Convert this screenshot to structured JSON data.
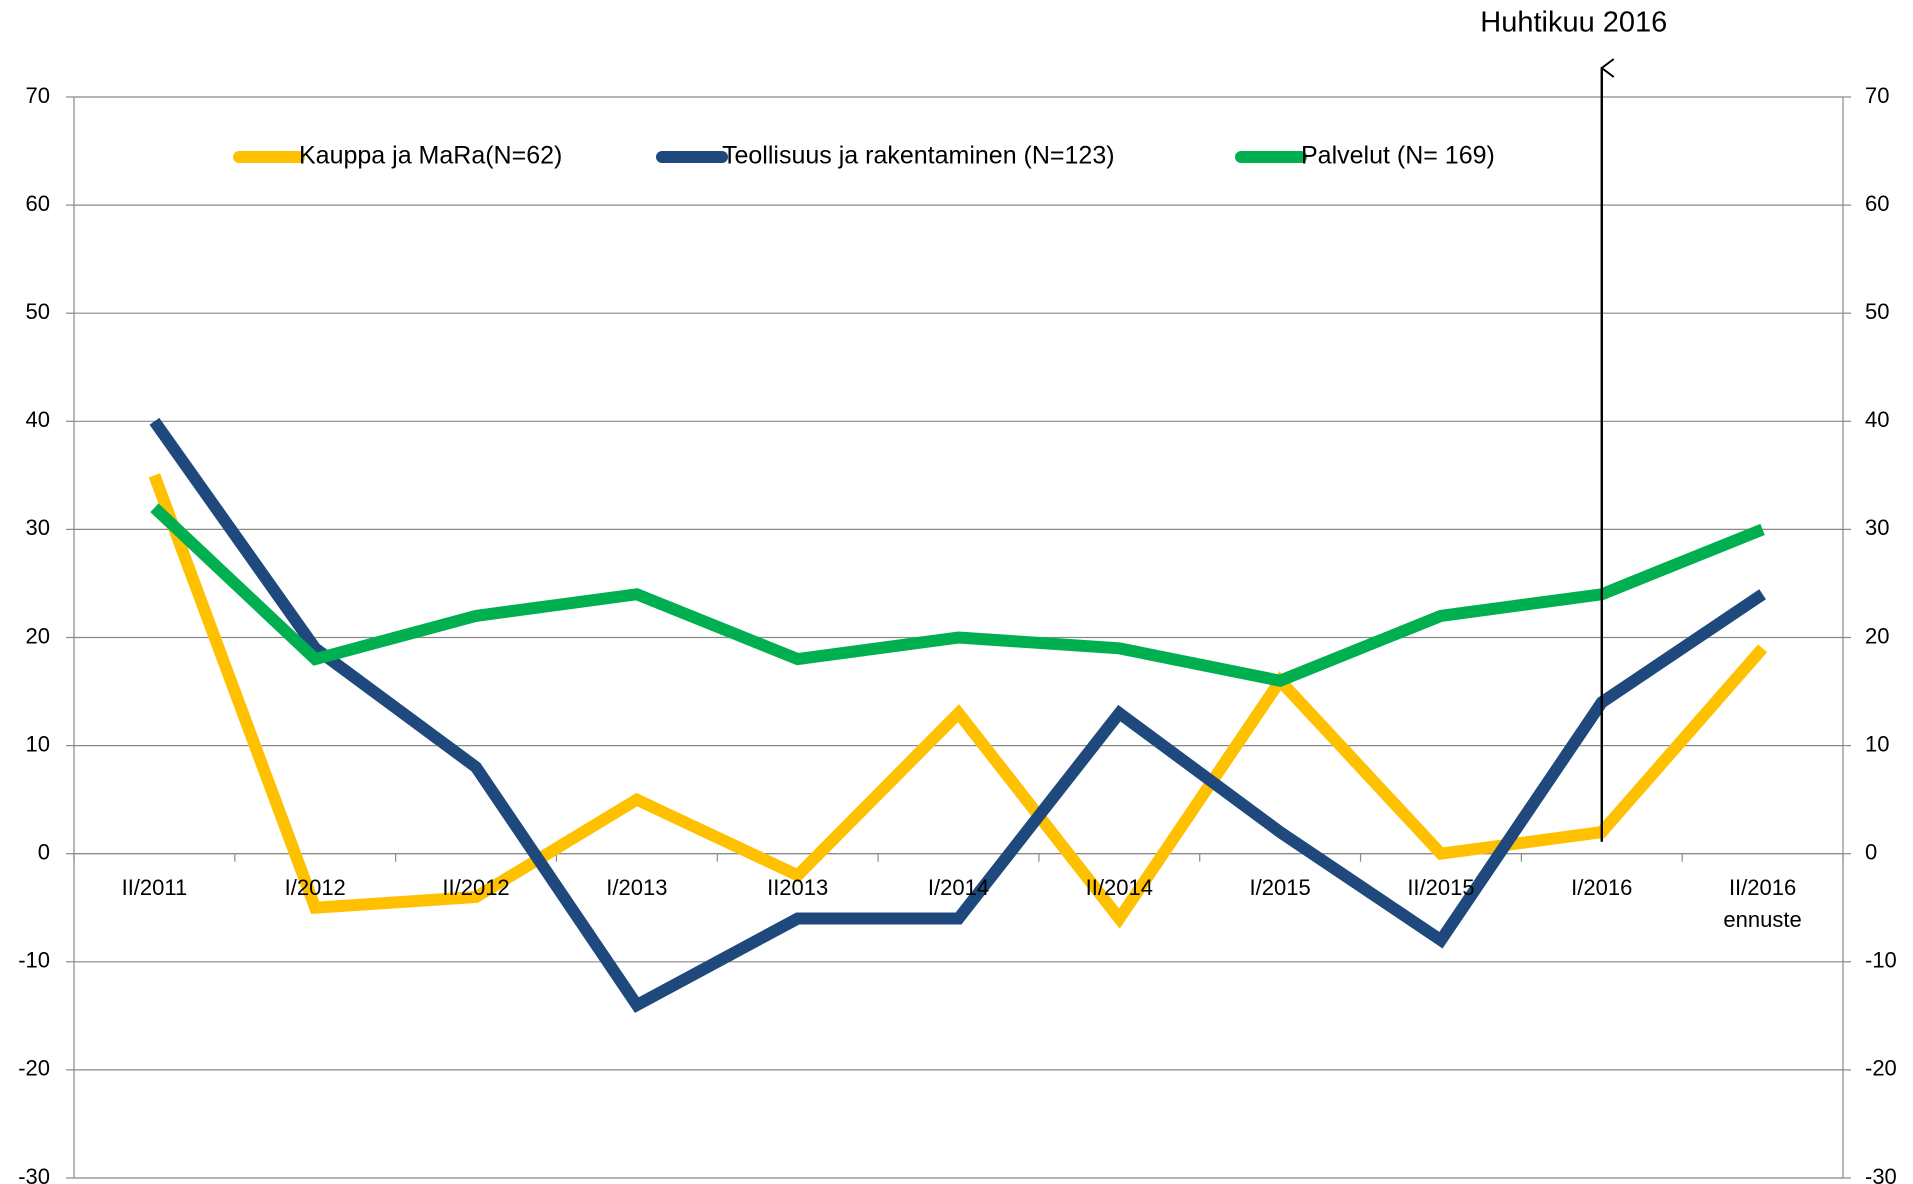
{
  "chart_data": {
    "type": "line",
    "annotation": "Huhtikuu 2016",
    "categories": [
      "II/2011",
      "I/2012",
      "II/2012",
      "I/2013",
      "II2013",
      "I/2014",
      "II/2014",
      "I/2015",
      "II/2015",
      "I/2016",
      "II/2016\nennuste"
    ],
    "series": [
      {
        "name": "Kauppa ja MaRa(N=62)",
        "color": "#ffc000",
        "values": [
          35,
          -5,
          -4,
          5,
          -2,
          13,
          -6,
          16,
          0,
          2,
          19
        ]
      },
      {
        "name": "Teollisuus ja rakentaminen (N=123)",
        "color": "#1f497d",
        "values": [
          40,
          19,
          8,
          -14,
          -6,
          -6,
          13,
          2,
          -8,
          14,
          24
        ]
      },
      {
        "name": "Palvelut (N= 169)",
        "color": "#00b050",
        "values": [
          32,
          18,
          22,
          24,
          18,
          20,
          19,
          16,
          22,
          24,
          30
        ]
      }
    ],
    "ylim": [
      -30,
      70
    ],
    "yticks": [
      -30,
      -20,
      -10,
      0,
      10,
      20,
      30,
      40,
      50,
      60,
      70
    ],
    "y2lim": [
      -30,
      70
    ],
    "y2ticks": [
      -30,
      -20,
      -10,
      0,
      10,
      20,
      30,
      40,
      50,
      60,
      70
    ],
    "grid": true,
    "legend": "top"
  }
}
